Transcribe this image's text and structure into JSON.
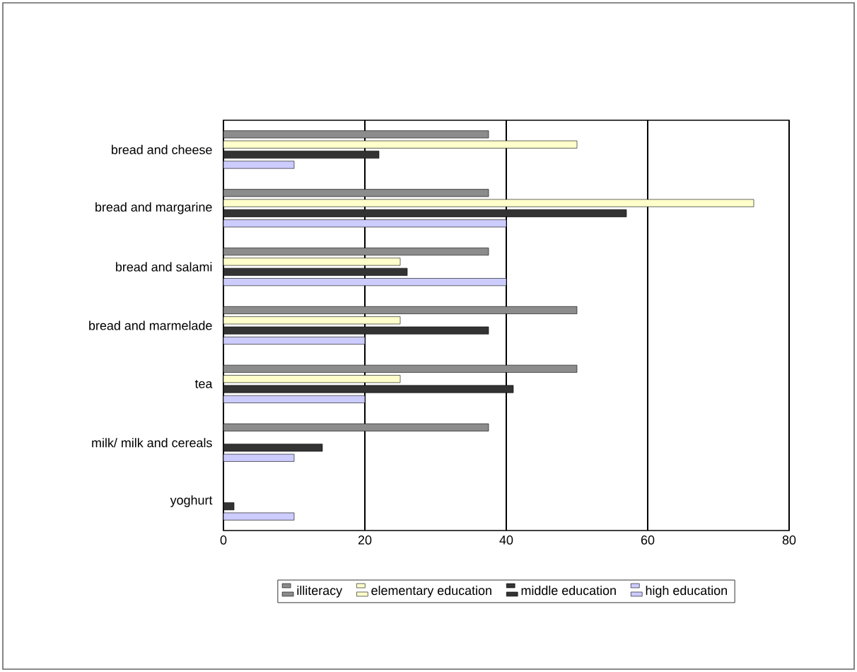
{
  "chart_data": {
    "type": "bar",
    "orientation": "horizontal",
    "categories": [
      "bread and cheese",
      "bread and margarine",
      "bread and salami",
      "bread and marmelade",
      "tea",
      "milk/ milk and cereals",
      "yoghurt"
    ],
    "series": [
      {
        "name": "illiteracy",
        "color": "#8c8c8c",
        "values": [
          37.5,
          37.5,
          37.5,
          50,
          50,
          37.5,
          0
        ]
      },
      {
        "name": "elementary education",
        "color": "#ffffcc",
        "values": [
          50,
          75,
          25,
          25,
          25,
          0,
          0
        ]
      },
      {
        "name": "middle education",
        "color": "#333333",
        "values": [
          22,
          57,
          26,
          37.5,
          41,
          14,
          1.5
        ]
      },
      {
        "name": "high education",
        "color": "#ccccff",
        "values": [
          10,
          40,
          40,
          20,
          20,
          10,
          10
        ]
      }
    ],
    "xlim": [
      0,
      80
    ],
    "xticks": [
      0,
      20,
      40,
      60,
      80
    ],
    "grid": "x",
    "legend": "bottom"
  }
}
